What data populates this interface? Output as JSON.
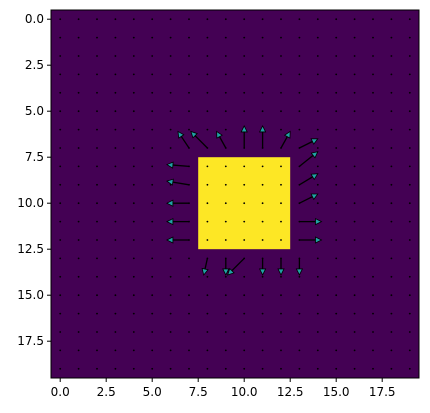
{
  "chart_data": {
    "type": "heatmap",
    "title": "",
    "xlabel": "",
    "ylabel": "",
    "grid_size": [
      20,
      20
    ],
    "xlim": [
      -0.5,
      19.5
    ],
    "ylim": [
      19.5,
      -0.5
    ],
    "x_ticks": [
      0,
      2.5,
      5,
      7.5,
      10,
      12.5,
      15,
      17.5
    ],
    "x_tick_labels": [
      "0.0",
      "2.5",
      "5.0",
      "7.5",
      "10.0",
      "12.5",
      "15.0",
      "17.5"
    ],
    "y_ticks": [
      0,
      2.5,
      5,
      7.5,
      10,
      12.5,
      15,
      17.5
    ],
    "y_tick_labels": [
      "0.0",
      "2.5",
      "5.0",
      "7.5",
      "10.0",
      "12.5",
      "15.0",
      "17.5"
    ],
    "colormap": "viridis",
    "background_value": 0,
    "background_color": "#440154",
    "region": {
      "value": 1,
      "color": "#fde725",
      "x_range": [
        8,
        12
      ],
      "y_range": [
        8,
        12
      ]
    },
    "vector_field": {
      "type": "quiver",
      "arrow_color": "#21a1a6",
      "edge_color": "#000000",
      "grid": "every integer cell",
      "vectors": [
        {
          "x": 7,
          "y": 7,
          "u": -0.6,
          "v": -0.9
        },
        {
          "x": 8,
          "y": 7,
          "u": -0.9,
          "v": -0.9
        },
        {
          "x": 9,
          "y": 7,
          "u": -0.5,
          "v": -0.9
        },
        {
          "x": 10,
          "y": 7,
          "u": 0.0,
          "v": -1.2
        },
        {
          "x": 11,
          "y": 7,
          "u": 0.0,
          "v": -1.2
        },
        {
          "x": 12,
          "y": 7,
          "u": 0.5,
          "v": -0.9
        },
        {
          "x": 13,
          "y": 7,
          "u": 1.0,
          "v": -0.5
        },
        {
          "x": 7,
          "y": 8,
          "u": -1.2,
          "v": -0.1
        },
        {
          "x": 13,
          "y": 8,
          "u": 1.0,
          "v": -0.8
        },
        {
          "x": 7,
          "y": 9,
          "u": -1.2,
          "v": -0.2
        },
        {
          "x": 13,
          "y": 9,
          "u": 1.0,
          "v": -0.6
        },
        {
          "x": 7,
          "y": 10,
          "u": -1.2,
          "v": 0.0
        },
        {
          "x": 13,
          "y": 10,
          "u": 1.0,
          "v": -0.5
        },
        {
          "x": 7,
          "y": 11,
          "u": -1.2,
          "v": 0.0
        },
        {
          "x": 13,
          "y": 11,
          "u": 1.2,
          "v": 0.0
        },
        {
          "x": 7,
          "y": 12,
          "u": -1.2,
          "v": 0.0
        },
        {
          "x": 13,
          "y": 12,
          "u": 1.2,
          "v": 0.0
        },
        {
          "x": 8,
          "y": 13,
          "u": -0.2,
          "v": 0.9
        },
        {
          "x": 9,
          "y": 13,
          "u": 0.0,
          "v": 0.9
        },
        {
          "x": 10,
          "y": 13,
          "u": -0.9,
          "v": 0.9
        },
        {
          "x": 11,
          "y": 13,
          "u": 0.0,
          "v": 0.9
        },
        {
          "x": 12,
          "y": 13,
          "u": 0.0,
          "v": 0.9
        },
        {
          "x": 13,
          "y": 13,
          "u": 0.0,
          "v": 0.9
        },
        {
          "x": 8,
          "y": 8,
          "u": 0.0,
          "v": 0.0
        },
        {
          "x": 12,
          "y": 8,
          "u": 0.0,
          "v": 0.0
        }
      ]
    }
  }
}
